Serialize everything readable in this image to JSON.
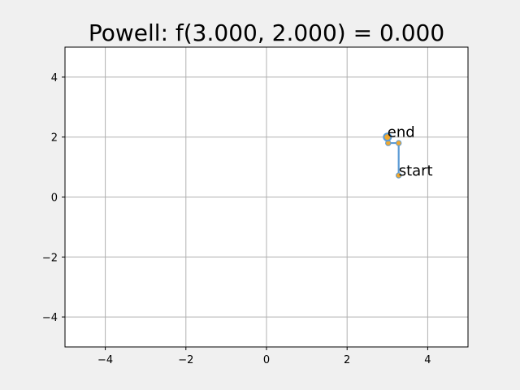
{
  "chart_data": {
    "type": "line",
    "title": "Powell: f(3.000, 2.000) = 0.000",
    "xlabel": "",
    "ylabel": "",
    "xlim": [
      -5,
      5
    ],
    "ylim": [
      -5,
      5
    ],
    "xticks": [
      -4,
      -2,
      0,
      2,
      4
    ],
    "yticks": [
      -4,
      -2,
      0,
      2,
      4
    ],
    "xtick_labels": [
      "−4",
      "−2",
      "0",
      "2",
      "4"
    ],
    "ytick_labels": [
      "−4",
      "−2",
      "0",
      "2",
      "4"
    ],
    "grid": true,
    "series": [
      {
        "points": [
          {
            "x": 3.28,
            "y": 0.72
          },
          {
            "x": 3.28,
            "y": 1.8
          },
          {
            "x": 3.02,
            "y": 1.8
          },
          {
            "x": 3.0,
            "y": 2.0
          }
        ]
      }
    ],
    "annotations": [
      {
        "text": "start",
        "x": 3.28,
        "y": 0.72
      },
      {
        "text": "end",
        "x": 3.0,
        "y": 2.0
      }
    ],
    "colors": {
      "line": "#5b9bd5",
      "marker_face": "#f0a830",
      "marker_edge": "#5b9bd5",
      "grid": "#b0b0b0",
      "axes_bg": "#ffffff",
      "figure_bg": "#f0f0f0"
    }
  }
}
